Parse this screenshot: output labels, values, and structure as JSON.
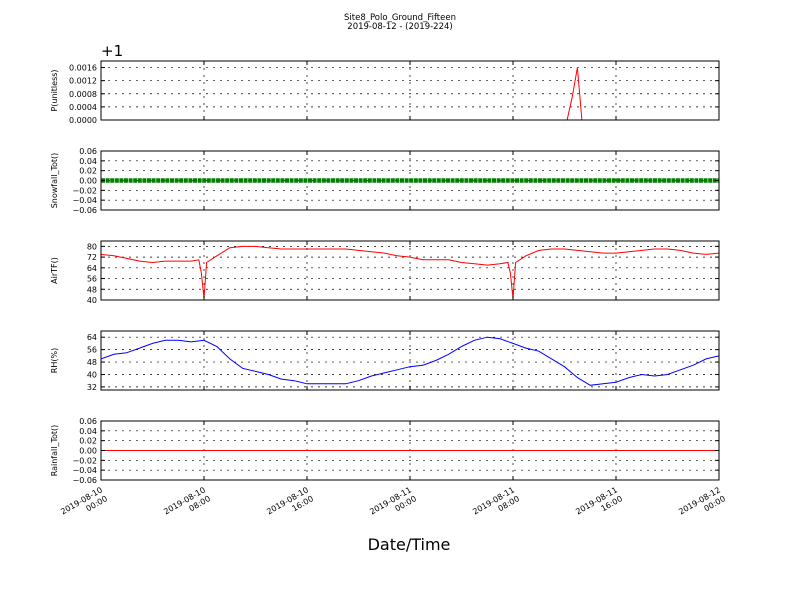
{
  "title_line1": "Site8_Polo_Ground_Fifteen",
  "title_line2": "2019-08-12 - (2019-224)",
  "xlabel": "Date/Time",
  "x_range": [
    "2019-08-10 00:00",
    "2019-08-12 00:00"
  ],
  "x_ticks": [
    {
      "line1": "2019-08-10",
      "line2": "00:00",
      "hours": 0
    },
    {
      "line1": "2019-08-10",
      "line2": "08:00",
      "hours": 8
    },
    {
      "line1": "2019-08-10",
      "line2": "16:00",
      "hours": 16
    },
    {
      "line1": "2019-08-11",
      "line2": "00:00",
      "hours": 24
    },
    {
      "line1": "2019-08-11",
      "line2": "08:00",
      "hours": 32
    },
    {
      "line1": "2019-08-11",
      "line2": "16:00",
      "hours": 40
    },
    {
      "line1": "2019-08-12",
      "line2": "00:00",
      "hours": 48
    }
  ],
  "colors": {
    "red": "#ff0000",
    "green": "#008000",
    "blue": "#0000ff"
  },
  "chart_data": [
    {
      "type": "line",
      "ylabel": "P(unitless)",
      "offset_label": "+1",
      "ylim": [
        0,
        0.0018
      ],
      "y_ticks": [
        0.0,
        0.0004,
        0.0008,
        0.0012,
        0.0016
      ],
      "y_tick_labels": [
        "0.0000",
        "0.0004",
        "0.0008",
        "0.0012",
        "0.0016"
      ],
      "grid": true,
      "series": [
        {
          "color": "#ff0000",
          "marker": false,
          "hours": [
            0,
            36.2,
            36.6,
            37.0,
            37.35,
            48
          ],
          "values": [
            0,
            0,
            0.0007,
            0.0016,
            0,
            0
          ]
        }
      ]
    },
    {
      "type": "line",
      "ylabel": "Snowfall_Tot()",
      "ylim": [
        -0.06,
        0.06
      ],
      "y_ticks": [
        -0.06,
        -0.04,
        -0.02,
        0.0,
        0.02,
        0.04,
        0.06
      ],
      "y_tick_labels": [
        "−0.06",
        "−0.04",
        "−0.02",
        "0.00",
        "0.02",
        "0.04",
        "0.06"
      ],
      "grid": true,
      "series": [
        {
          "color": "#008000",
          "marker": true,
          "hours": [
            0,
            48
          ],
          "values": [
            0,
            0
          ]
        }
      ]
    },
    {
      "type": "line",
      "ylabel": "AirTF()",
      "ylim": [
        40,
        84
      ],
      "y_ticks": [
        40,
        48,
        56,
        64,
        72,
        80
      ],
      "y_tick_labels": [
        "40",
        "48",
        "56",
        "64",
        "72",
        "80"
      ],
      "grid": true,
      "series": [
        {
          "color": "#ff0000",
          "marker": false,
          "hours": [
            0,
            1,
            2,
            3,
            4,
            5,
            6,
            7,
            7.6,
            7.8,
            8.0,
            8.2,
            9,
            10,
            11,
            12,
            13,
            14,
            15,
            16,
            17,
            18,
            19,
            20,
            21,
            22,
            23,
            24,
            25,
            26,
            27,
            28,
            29,
            30,
            31,
            31.6,
            31.8,
            32.0,
            32.2,
            33,
            34,
            35,
            36,
            37,
            38,
            39,
            40,
            41,
            42,
            43,
            44,
            45,
            46,
            47,
            48
          ],
          "values": [
            74,
            73,
            71,
            69,
            68,
            69,
            69,
            69,
            70,
            60,
            41,
            68,
            73,
            79,
            80,
            80,
            79,
            78,
            78,
            78,
            78,
            78,
            78,
            77,
            76,
            75,
            73,
            72,
            70,
            70,
            70,
            68,
            67,
            66,
            67,
            68,
            60,
            41,
            68,
            73,
            77,
            78,
            78,
            77,
            76,
            75,
            75,
            76,
            77,
            78,
            78,
            77,
            75,
            74,
            75
          ]
        }
      ]
    },
    {
      "type": "line",
      "ylabel": "RH(%)",
      "ylim": [
        30,
        68
      ],
      "y_ticks": [
        32,
        40,
        48,
        56,
        64
      ],
      "y_tick_labels": [
        "32",
        "40",
        "48",
        "56",
        "64"
      ],
      "grid": true,
      "series": [
        {
          "color": "#0000ff",
          "marker": false,
          "hours": [
            0,
            1,
            2,
            3,
            4,
            5,
            6,
            7,
            8,
            9,
            10,
            11,
            12,
            13,
            14,
            15,
            16,
            17,
            18,
            19,
            20,
            21,
            22,
            23,
            24,
            25,
            26,
            27,
            28,
            29,
            30,
            31,
            32,
            33,
            34,
            35,
            36,
            37,
            38,
            39,
            40,
            41,
            42,
            43,
            44,
            45,
            46,
            47,
            48
          ],
          "values": [
            50,
            53,
            54,
            57,
            60,
            62,
            62,
            61,
            62,
            58,
            50,
            44,
            42,
            40,
            37,
            36,
            34,
            34,
            34,
            34,
            36,
            39,
            41,
            43,
            45,
            46,
            49,
            53,
            58,
            62,
            64,
            63,
            60,
            57,
            55,
            50,
            45,
            38,
            33,
            34,
            35,
            38,
            40,
            39,
            40,
            43,
            46,
            50,
            52
          ]
        }
      ]
    },
    {
      "type": "line",
      "ylabel": "Rainfall_Tot()",
      "ylim": [
        -0.06,
        0.06
      ],
      "y_ticks": [
        -0.06,
        -0.04,
        -0.02,
        0.0,
        0.02,
        0.04,
        0.06
      ],
      "y_tick_labels": [
        "−0.06",
        "−0.04",
        "−0.02",
        "0.00",
        "0.02",
        "0.04",
        "0.06"
      ],
      "grid": true,
      "series": [
        {
          "color": "#ff0000",
          "marker": false,
          "hours": [
            0,
            48
          ],
          "values": [
            0,
            0
          ]
        }
      ]
    }
  ]
}
